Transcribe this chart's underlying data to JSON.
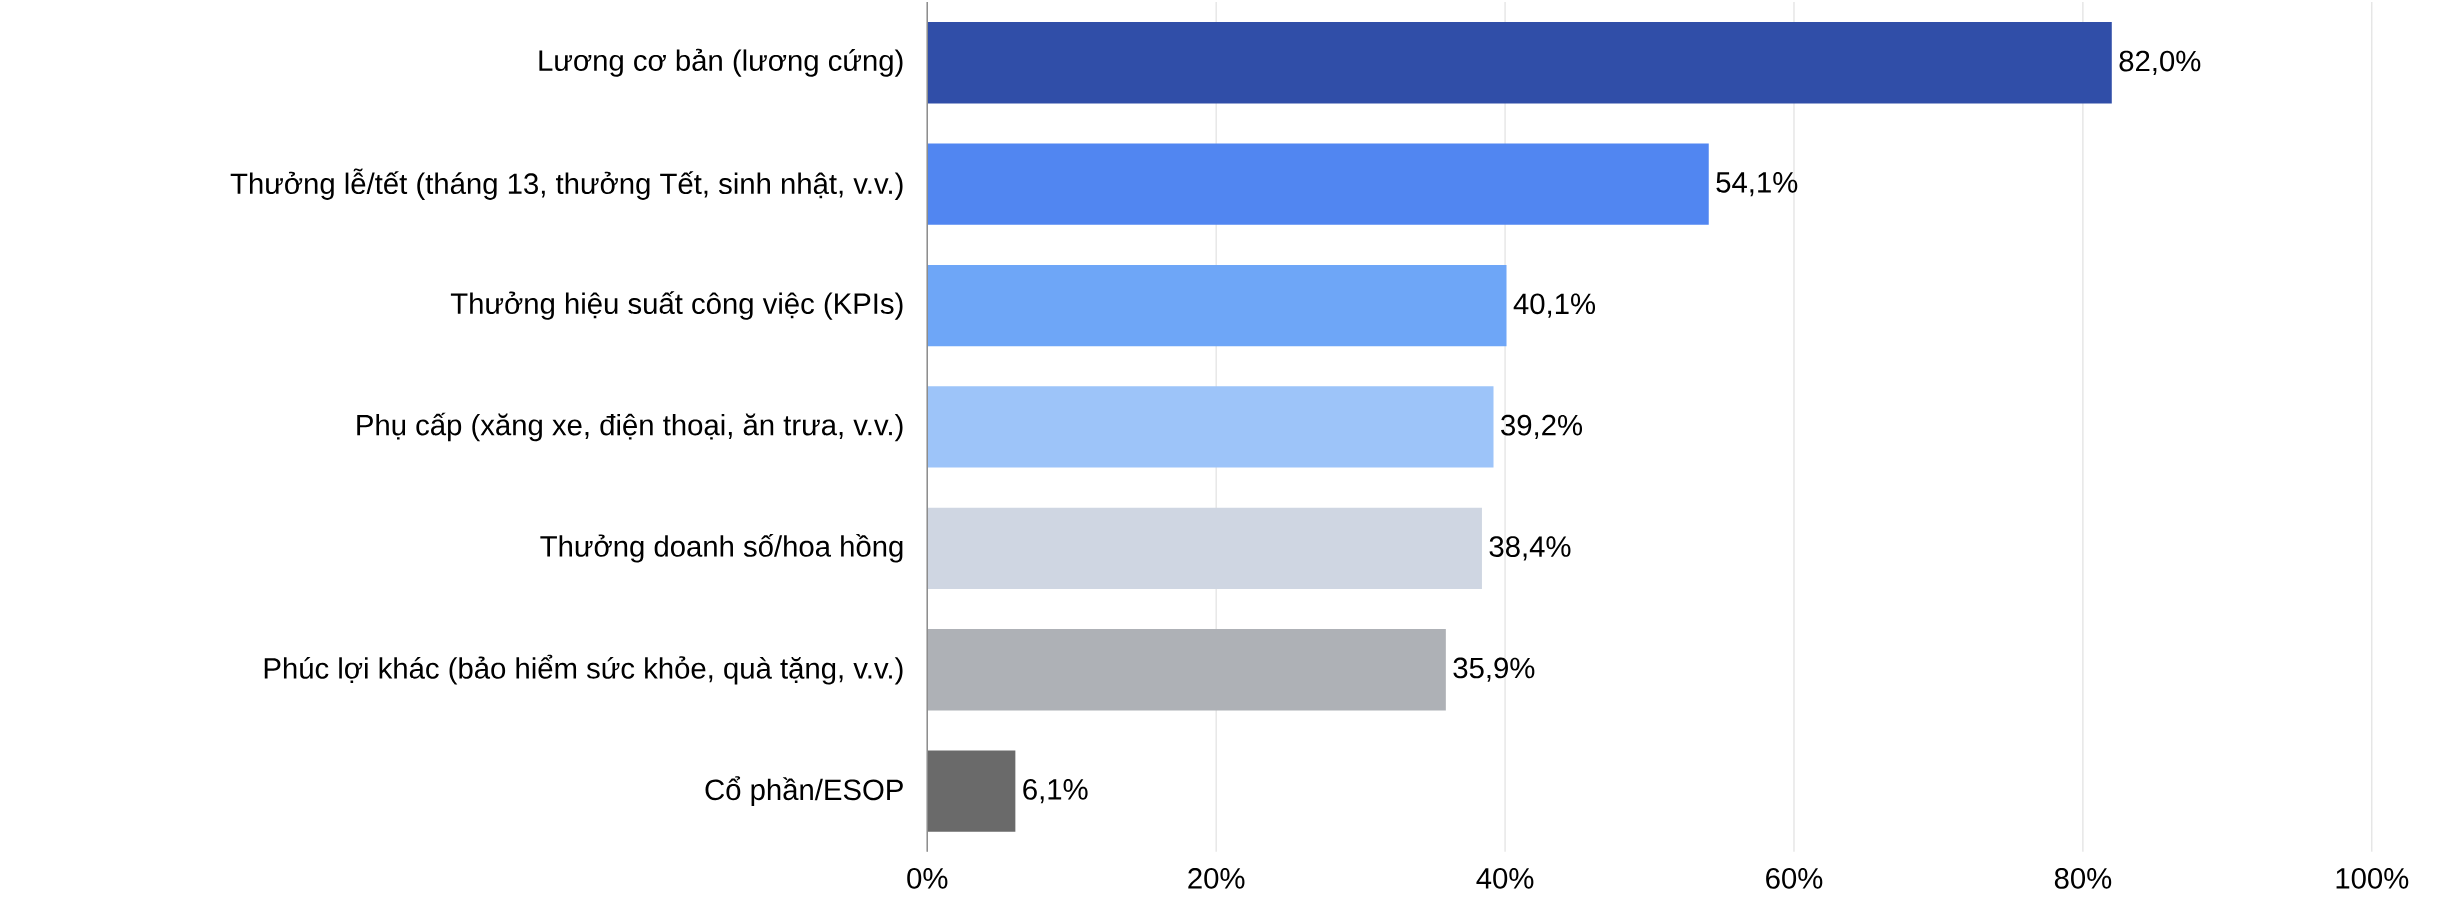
{
  "chart_data": {
    "type": "bar",
    "orientation": "horizontal",
    "categories": [
      "Lương cơ bản (lương cứng)",
      "Thưởng lễ/tết (tháng 13, thưởng Tết, sinh nhật, v.v.)",
      "Thưởng hiệu suất công việc (KPIs)",
      "Phụ cấp (xăng xe, điện thoại, ăn trưa, v.v.)",
      "Thưởng doanh số/hoa hồng",
      "Phúc lợi khác (bảo hiểm sức khỏe, quà tặng, v.v.)",
      "Cổ phần/ESOP"
    ],
    "values": [
      82.0,
      54.1,
      40.1,
      39.2,
      38.4,
      35.9,
      6.1
    ],
    "colors": [
      "#304ea8",
      "#5186f1",
      "#6ea6f7",
      "#9dc4f9",
      "#cfd6e2",
      "#aeb1b6",
      "#6a6a6a"
    ],
    "value_labels": [
      "82,0%",
      "54,1%",
      "40,1%",
      "39,2%",
      "38,4%",
      "35,9%",
      "6,1%"
    ],
    "xlim": [
      0,
      100
    ],
    "xticks": [
      {
        "value": 0,
        "label": "0%"
      },
      {
        "value": 20,
        "label": "20%"
      },
      {
        "value": 40,
        "label": "40%"
      },
      {
        "value": 60,
        "label": "60%"
      },
      {
        "value": 80,
        "label": "80%"
      },
      {
        "value": 100,
        "label": "100%"
      }
    ],
    "grid": "x"
  }
}
